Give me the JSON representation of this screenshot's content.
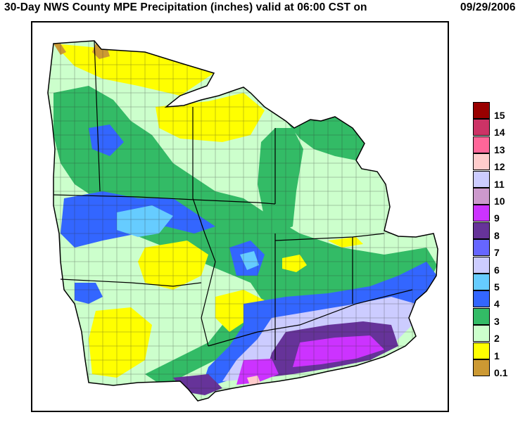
{
  "title": {
    "main": "30-Day NWS County MPE Precipitation (inches) valid at 06:00 CST on",
    "date": "09/29/2006"
  },
  "legend": [
    {
      "label": "15",
      "color": "#990000"
    },
    {
      "label": "14",
      "color": "#cc3366"
    },
    {
      "label": "13",
      "color": "#ff6699"
    },
    {
      "label": "12",
      "color": "#ffcccc"
    },
    {
      "label": "11",
      "color": "#ccccff"
    },
    {
      "label": "10",
      "color": "#cc99cc"
    },
    {
      "label": "9",
      "color": "#cc33ff"
    },
    {
      "label": "8",
      "color": "#663399"
    },
    {
      "label": "7",
      "color": "#6666ff"
    },
    {
      "label": "6",
      "color": "#ccccff"
    },
    {
      "label": "5",
      "color": "#66ccff"
    },
    {
      "label": "4",
      "color": "#3366ff"
    },
    {
      "label": "3",
      "color": "#33bb66"
    },
    {
      "label": "2",
      "color": "#ccffcc"
    },
    {
      "label": "1",
      "color": "#ffff00"
    },
    {
      "label": "0.1",
      "color": "#cc9933"
    }
  ]
}
